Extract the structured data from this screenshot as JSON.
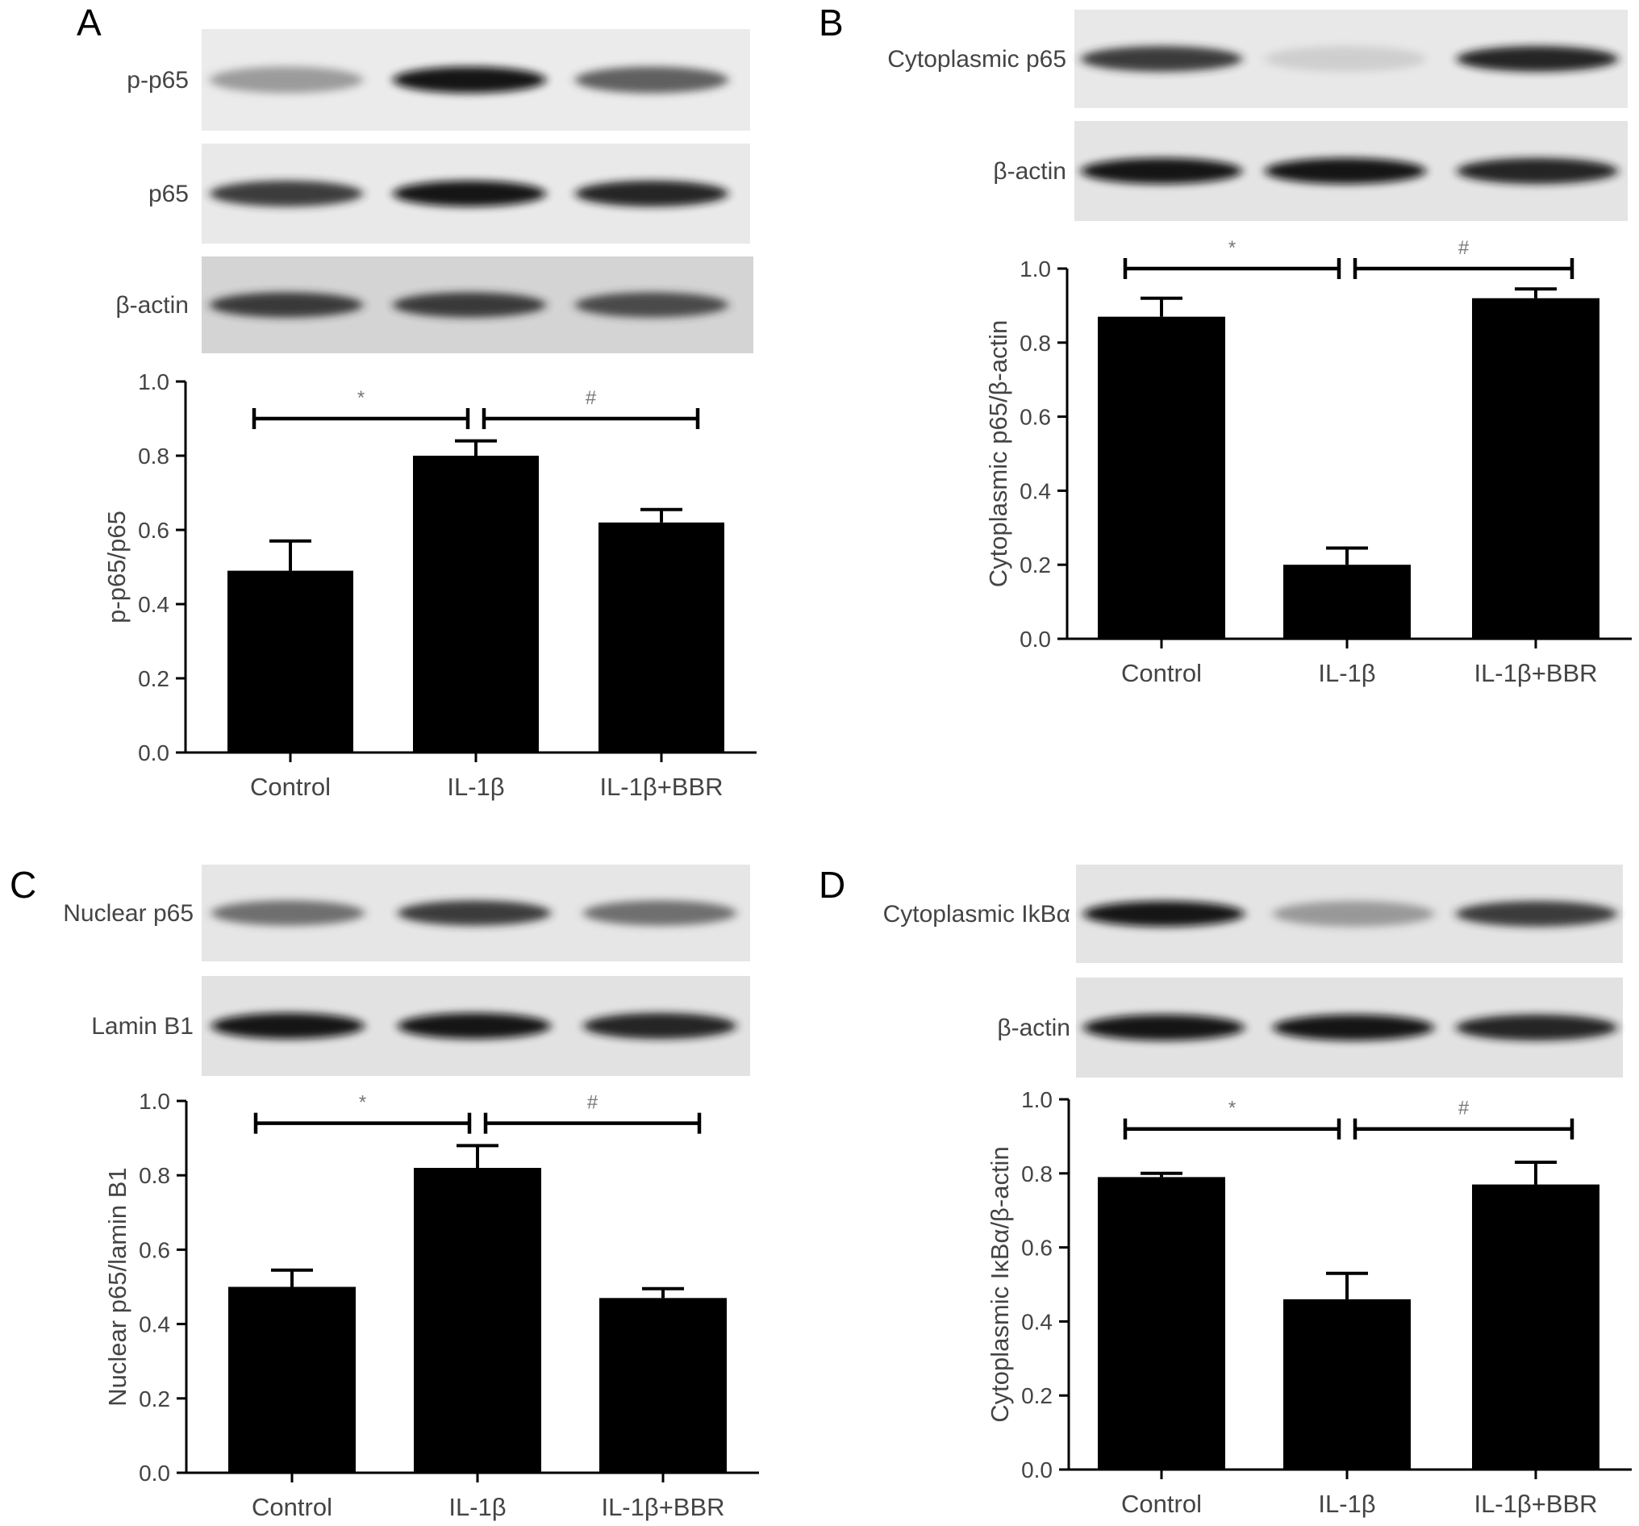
{
  "panels": [
    {
      "letter": "A",
      "blots": [
        {
          "label": "p-p65",
          "intensities": [
            0.55,
            0.95,
            0.75
          ],
          "bg": "#ebebeb"
        },
        {
          "label": "p65",
          "intensities": [
            0.85,
            0.95,
            0.9
          ],
          "bg": "#e9e9e9"
        },
        {
          "label": "β-actin",
          "intensities": [
            0.85,
            0.85,
            0.8
          ],
          "bg": "#d4d4d4"
        }
      ],
      "chart_data": {
        "type": "bar",
        "categories": [
          "Control",
          "IL-1β",
          "IL-1β+BBR"
        ],
        "values": [
          0.49,
          0.8,
          0.62
        ],
        "errors": [
          0.08,
          0.04,
          0.035
        ],
        "ylabel": "p-p65/p65",
        "ylim": [
          0,
          1.0
        ],
        "yticks": [
          "0.0",
          "0.2",
          "0.4",
          "0.6",
          "0.8",
          "1.0"
        ],
        "significance": [
          {
            "from": 0,
            "to": 1,
            "label": "*",
            "y": 0.9
          },
          {
            "from": 1,
            "to": 2,
            "label": "#",
            "y": 0.9
          }
        ]
      }
    },
    {
      "letter": "B",
      "blots": [
        {
          "label": "Cytoplasmic p65",
          "intensities": [
            0.85,
            0.3,
            0.9
          ],
          "bg": "#e8e8e8"
        },
        {
          "label": "β-actin",
          "intensities": [
            0.95,
            0.95,
            0.9
          ],
          "bg": "#e4e4e4"
        }
      ],
      "chart_data": {
        "type": "bar",
        "categories": [
          "Control",
          "IL-1β",
          "IL-1β+BBR"
        ],
        "values": [
          0.87,
          0.2,
          0.92
        ],
        "errors": [
          0.05,
          0.045,
          0.025
        ],
        "ylabel": "Cytoplasmic p65/β-actin",
        "ylim": [
          0,
          1.0
        ],
        "yticks": [
          "0.0",
          "0.2",
          "0.4",
          "0.6",
          "0.8",
          "1.0"
        ],
        "significance": [
          {
            "from": 0,
            "to": 1,
            "label": "*",
            "y": 1.0
          },
          {
            "from": 1,
            "to": 2,
            "label": "#",
            "y": 1.0
          }
        ]
      }
    },
    {
      "letter": "C",
      "blots": [
        {
          "label": "Nuclear p65",
          "intensities": [
            0.7,
            0.85,
            0.7
          ],
          "bg": "#e6e6e6"
        },
        {
          "label": "Lamin B1",
          "intensities": [
            0.95,
            0.95,
            0.9
          ],
          "bg": "#e2e2e2"
        }
      ],
      "chart_data": {
        "type": "bar",
        "categories": [
          "Control",
          "IL-1β",
          "IL-1β+BBR"
        ],
        "values": [
          0.5,
          0.82,
          0.47
        ],
        "errors": [
          0.045,
          0.06,
          0.025
        ],
        "ylabel": "Nuclear p65/lamin B1",
        "ylim": [
          0,
          1.0
        ],
        "yticks": [
          "0.0",
          "0.2",
          "0.4",
          "0.6",
          "0.8",
          "1.0"
        ],
        "significance": [
          {
            "from": 0,
            "to": 1,
            "label": "*",
            "y": 0.94
          },
          {
            "from": 1,
            "to": 2,
            "label": "#",
            "y": 0.94
          }
        ]
      }
    },
    {
      "letter": "D",
      "blots": [
        {
          "label": "Cytoplasmic IkBα",
          "intensities": [
            0.95,
            0.55,
            0.85
          ],
          "bg": "#e4e4e4"
        },
        {
          "label": "β-actin",
          "intensities": [
            0.95,
            0.95,
            0.9
          ],
          "bg": "#e2e2e2"
        }
      ],
      "chart_data": {
        "type": "bar",
        "categories": [
          "Control",
          "IL-1β",
          "IL-1β+BBR"
        ],
        "values": [
          0.79,
          0.46,
          0.77
        ],
        "errors": [
          0.01,
          0.07,
          0.06
        ],
        "ylabel": "Cytoplasmic IκBα/β-actin",
        "ylim": [
          0,
          1.0
        ],
        "yticks": [
          "0.0",
          "0.2",
          "0.4",
          "0.6",
          "0.8",
          "1.0"
        ],
        "significance": [
          {
            "from": 0,
            "to": 1,
            "label": "*",
            "y": 0.92
          },
          {
            "from": 1,
            "to": 2,
            "label": "#",
            "y": 0.92
          }
        ]
      }
    }
  ],
  "colors": {
    "bar": "#000000",
    "text": "#444444",
    "significance": "#777777"
  }
}
